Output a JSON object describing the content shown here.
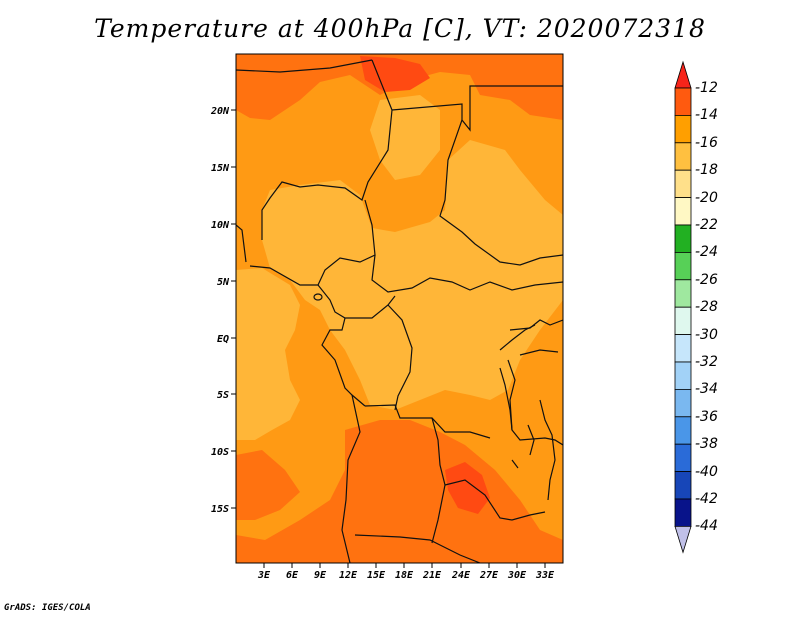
{
  "title": "Temperature at 400hPa [C], VT: 2020072318",
  "footer": "GrADS: IGES/COLA",
  "map": {
    "lat_labels": [
      "20N",
      "15N",
      "10N",
      "5N",
      "EQ",
      "5S",
      "10S",
      "15S"
    ],
    "lon_labels": [
      "3E",
      "6E",
      "9E",
      "12E",
      "15E",
      "18E",
      "21E",
      "24E",
      "27E",
      "30E",
      "33E"
    ],
    "fill_colors": {
      "c_m12": "#ff4a12",
      "c_m14": "#ff7210",
      "c_m16": "#ff9a14",
      "c_m18": "#ffb638",
      "boundary": "#111111"
    }
  },
  "colorbar": {
    "labels": [
      "-12",
      "-14",
      "-16",
      "-18",
      "-20",
      "-22",
      "-24",
      "-26",
      "-28",
      "-30",
      "-32",
      "-34",
      "-36",
      "-38",
      "-40",
      "-42",
      "-44"
    ],
    "colors": [
      "#f7241a",
      "#ff5a0f",
      "#ff9f00",
      "#ffc040",
      "#ffe08a",
      "#fff8c4",
      "#22b022",
      "#57d057",
      "#9fe89f",
      "#dff8ee",
      "#c6e6fb",
      "#a2d2f7",
      "#7ab8f0",
      "#4a96e8",
      "#2a6bd8",
      "#1746b8",
      "#08138a",
      "#c0c0e8"
    ]
  }
}
